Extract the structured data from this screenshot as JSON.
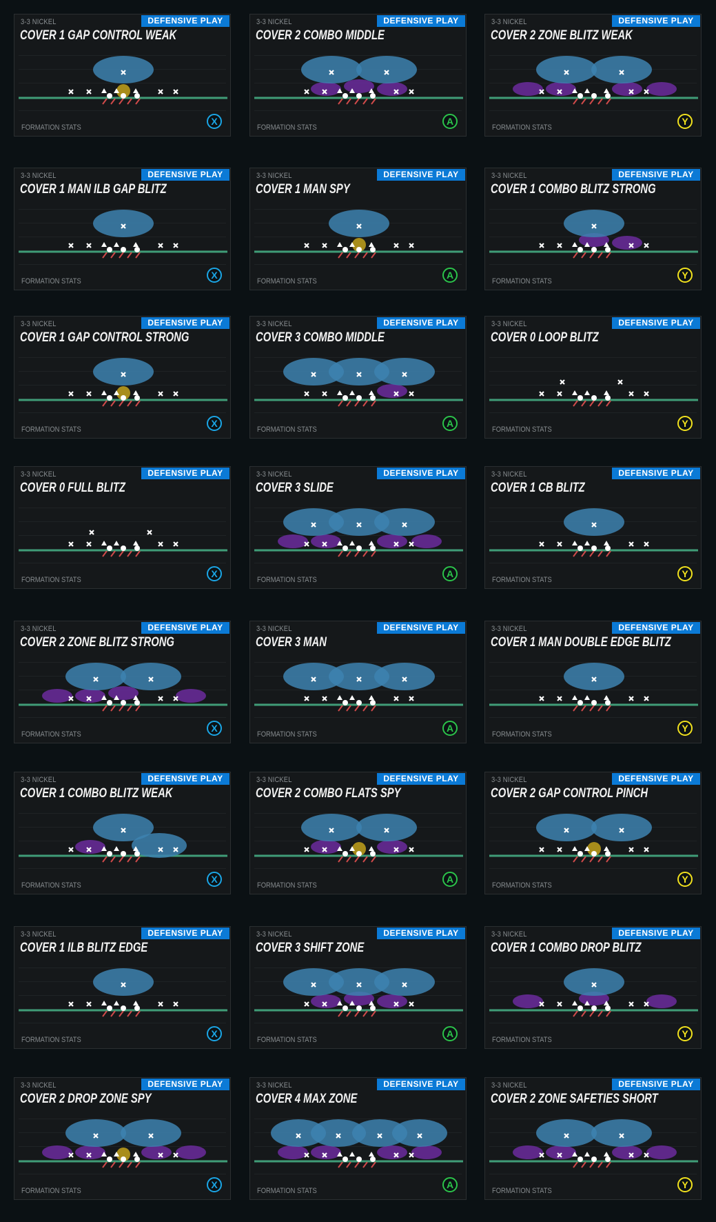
{
  "badge_label": "DEFENSIVE PLAY",
  "stats_label": "FORMATION STATS",
  "colors": {
    "badge": "#0b7ad6",
    "zone_deep": "#3d82b0",
    "zone_hook": "#6b2c9e",
    "spy": "#b89a1c",
    "line": "#3f9c77",
    "X": "#1ba6e6",
    "A": "#2cc44a",
    "Y": "#f2e21e"
  },
  "plays": [
    {
      "formation": "3-3 NICKEL",
      "title": "COVER 1 GAP CONTROL WEAK",
      "button": "X",
      "deep": "one",
      "hooks": [],
      "spy": true
    },
    {
      "formation": "3-3 NICKEL",
      "title": "COVER 2 COMBO MIDDLE",
      "button": "A",
      "deep": "two",
      "hooks": [
        "hook_left",
        "hook_mid",
        "hook_right"
      ],
      "spy": false
    },
    {
      "formation": "3-3 NICKEL",
      "title": "COVER 2 ZONE BLITZ WEAK",
      "button": "Y",
      "deep": "two",
      "hooks": [
        "flat_left",
        "hook_left",
        "hook_right",
        "flat_right"
      ],
      "spy": false
    },
    {
      "formation": "3-3 NICKEL",
      "title": "COVER 1 MAN ILB GAP BLITZ",
      "button": "X",
      "deep": "one",
      "hooks": [],
      "spy": false
    },
    {
      "formation": "3-3 NICKEL",
      "title": "COVER 1 MAN SPY",
      "button": "A",
      "deep": "one",
      "hooks": [],
      "spy": true
    },
    {
      "formation": "3-3 NICKEL",
      "title": "COVER 1 COMBO BLITZ STRONG",
      "button": "Y",
      "deep": "one",
      "hooks": [
        "hook_mid",
        "hook_right"
      ],
      "spy": false
    },
    {
      "formation": "3-3 NICKEL",
      "title": "COVER 1 GAP CONTROL STRONG",
      "button": "X",
      "deep": "one",
      "hooks": [],
      "spy": true
    },
    {
      "formation": "3-3 NICKEL",
      "title": "COVER 3 COMBO MIDDLE",
      "button": "A",
      "deep": "three",
      "hooks": [
        "hook_right"
      ],
      "spy": false
    },
    {
      "formation": "3-3 NICKEL",
      "title": "COVER 0 LOOP BLITZ",
      "button": "Y",
      "deep": "none",
      "hooks": [],
      "spy": false
    },
    {
      "formation": "3-3 NICKEL",
      "title": "COVER 0 FULL BLITZ",
      "button": "X",
      "deep": "none",
      "hooks": [],
      "spy": false
    },
    {
      "formation": "3-3 NICKEL",
      "title": "COVER 3 SLIDE",
      "button": "A",
      "deep": "three",
      "hooks": [
        "flat_left",
        "hook_left",
        "hook_right",
        "flat_right"
      ],
      "spy": false
    },
    {
      "formation": "3-3 NICKEL",
      "title": "COVER 1 CB BLITZ",
      "button": "Y",
      "deep": "one",
      "hooks": [],
      "spy": false
    },
    {
      "formation": "3-3 NICKEL",
      "title": "COVER 2 ZONE BLITZ STRONG",
      "button": "X",
      "deep": "two",
      "hooks": [
        "flat_left",
        "hook_left",
        "hook_mid",
        "flat_right"
      ],
      "spy": false
    },
    {
      "formation": "3-3 NICKEL",
      "title": "COVER 3 MAN",
      "button": "A",
      "deep": "three",
      "hooks": [],
      "spy": false
    },
    {
      "formation": "3-3 NICKEL",
      "title": "COVER 1 MAN DOUBLE EDGE BLITZ",
      "button": "Y",
      "deep": "one",
      "hooks": [],
      "spy": false
    },
    {
      "formation": "3-3 NICKEL",
      "title": "COVER 1 COMBO BLITZ WEAK",
      "button": "X",
      "deep": "one",
      "hooks": [
        "hook_left",
        "robber_right"
      ],
      "spy": false
    },
    {
      "formation": "3-3 NICKEL",
      "title": "COVER 2 COMBO FLATS SPY",
      "button": "A",
      "deep": "two",
      "hooks": [
        "hook_left",
        "hook_right"
      ],
      "spy": true
    },
    {
      "formation": "3-3 NICKEL",
      "title": "COVER 2 GAP CONTROL PINCH",
      "button": "Y",
      "deep": "two",
      "hooks": [],
      "spy": true
    },
    {
      "formation": "3-3 NICKEL",
      "title": "COVER 1 ILB BLITZ EDGE",
      "button": "X",
      "deep": "one",
      "hooks": [],
      "spy": false
    },
    {
      "formation": "3-3 NICKEL",
      "title": "COVER 3 SHIFT ZONE",
      "button": "A",
      "deep": "three",
      "hooks": [
        "hook_left",
        "hook_mid",
        "hook_right"
      ],
      "spy": false
    },
    {
      "formation": "3-3 NICKEL",
      "title": "COVER 1 COMBO DROP BLITZ",
      "button": "Y",
      "deep": "one",
      "hooks": [
        "flat_left",
        "hook_mid",
        "flat_right"
      ],
      "spy": false
    },
    {
      "formation": "3-3 NICKEL",
      "title": "COVER 2 DROP ZONE SPY",
      "button": "X",
      "deep": "two",
      "hooks": [
        "flat_left",
        "hook_left",
        "hook_right",
        "flat_right"
      ],
      "spy": true
    },
    {
      "formation": "3-3 NICKEL",
      "title": "COVER 4 MAX ZONE",
      "button": "A",
      "deep": "four",
      "hooks": [
        "flat_left",
        "hook_left",
        "hook_right",
        "flat_right"
      ],
      "spy": false
    },
    {
      "formation": "3-3 NICKEL",
      "title": "COVER 2 ZONE SAFETIES SHORT",
      "button": "Y",
      "deep": "two",
      "hooks": [
        "flat_left",
        "hook_left",
        "hook_right",
        "flat_right"
      ],
      "spy": false
    }
  ]
}
